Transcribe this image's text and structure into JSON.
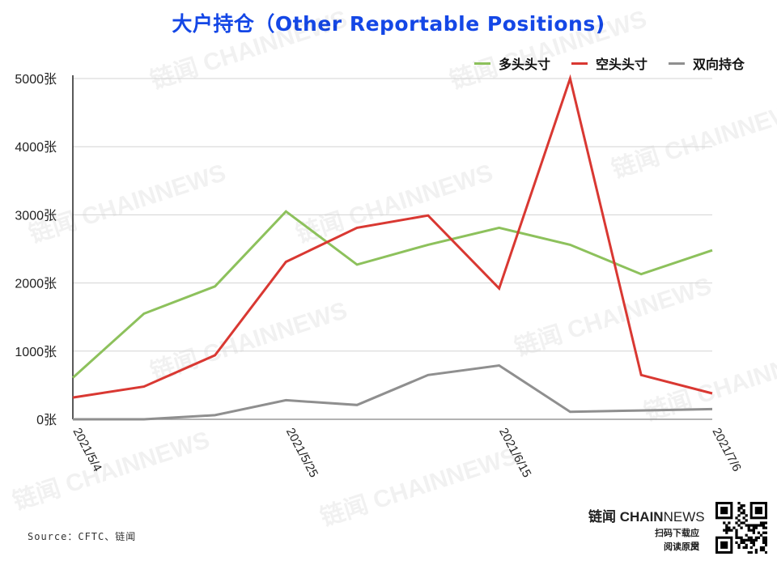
{
  "title": "大户持仓（Other Reportable Positions)",
  "source": "Source：CFTC、链闻",
  "brand": {
    "name_prefix": "链闻 ",
    "name_bold": "CHAIN",
    "name_rest": "NEWS",
    "sub1": "扫码下载应用",
    "sub2": "阅读原文"
  },
  "watermark_text": "链闻 CHAINNEWS",
  "colors": {
    "long": "#8dc15c",
    "short": "#d93832",
    "both": "#8f8f8f",
    "title": "#1447e6",
    "grid": "#d3d3d3"
  },
  "chart_data": {
    "type": "line",
    "title": "大户持仓（Other Reportable Positions)",
    "x": [
      "2021/5/4",
      "2021/5/11",
      "2021/5/18",
      "2021/5/25",
      "2021/6/1",
      "2021/6/8",
      "2021/6/15",
      "2021/6/22",
      "2021/6/29",
      "2021/7/6"
    ],
    "x_tick_labels": [
      "2021/5/4",
      "2021/5/25",
      "2021/6/15",
      "2021/7/6"
    ],
    "y_ticks": [
      "0张",
      "1000张",
      "2000张",
      "3000张",
      "4000张",
      "5000张"
    ],
    "ylim": [
      0,
      5000
    ],
    "grid": true,
    "legend_position": "top-right",
    "series": [
      {
        "name": "多头头寸",
        "color": "#8dc15c",
        "values": [
          610,
          1550,
          1950,
          3050,
          2270,
          2560,
          2810,
          2560,
          2130,
          2480
        ]
      },
      {
        "name": "空头头寸",
        "color": "#d93832",
        "values": [
          320,
          480,
          940,
          2310,
          2810,
          2990,
          1920,
          5000,
          650,
          380
        ]
      },
      {
        "name": "双向持仓",
        "color": "#8f8f8f",
        "values": [
          0,
          0,
          60,
          280,
          210,
          650,
          790,
          110,
          130,
          150
        ]
      }
    ]
  }
}
